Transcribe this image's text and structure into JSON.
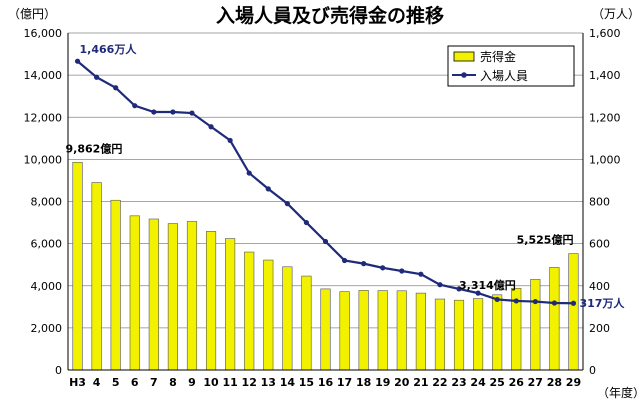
{
  "chart_data": {
    "type": "bar+line",
    "title": "入場人員及び売得金の推移",
    "left_unit": "（億円）",
    "right_unit": "（万人）",
    "x_unit": "（年度）",
    "categories": [
      "H3",
      "4",
      "5",
      "6",
      "7",
      "8",
      "9",
      "10",
      "11",
      "12",
      "13",
      "14",
      "15",
      "16",
      "17",
      "18",
      "19",
      "20",
      "21",
      "22",
      "23",
      "24",
      "25",
      "26",
      "27",
      "28",
      "29"
    ],
    "left_axis": {
      "min": 0,
      "max": 16000,
      "step": 2000,
      "ticks": [
        "0",
        "2,000",
        "4,000",
        "6,000",
        "8,000",
        "10,000",
        "12,000",
        "14,000",
        "16,000"
      ]
    },
    "right_axis": {
      "min": 0,
      "max": 1600,
      "step": 200,
      "ticks": [
        "0",
        "200",
        "400",
        "600",
        "800",
        "1,000",
        "1,200",
        "1,400",
        "1,600"
      ]
    },
    "series": [
      {
        "name": "売得金",
        "type": "bar",
        "axis": "left",
        "color": "#f2f200",
        "values": [
          9862,
          8900,
          8060,
          7320,
          7170,
          6950,
          7050,
          6580,
          6240,
          5600,
          5220,
          4900,
          4460,
          3850,
          3720,
          3780,
          3770,
          3760,
          3650,
          3370,
          3314,
          3390,
          3570,
          3880,
          4300,
          4870,
          5525
        ]
      },
      {
        "name": "入場人員",
        "type": "line",
        "axis": "right",
        "color": "#1f2a7a",
        "values": [
          1466,
          1390,
          1340,
          1255,
          1225,
          1225,
          1220,
          1155,
          1090,
          935,
          860,
          790,
          700,
          610,
          520,
          505,
          485,
          470,
          455,
          405,
          385,
          365,
          335,
          328,
          325,
          318,
          317
        ]
      }
    ],
    "annotations": [
      {
        "text": "1,466万人",
        "series": 1,
        "index": 0,
        "color": "#1f2a7a"
      },
      {
        "text": "9,862億円",
        "series": 0,
        "index": 0,
        "color": "#000000"
      },
      {
        "text": "3,314億円",
        "series": 0,
        "index": 20,
        "color": "#000000"
      },
      {
        "text": "5,525億円",
        "series": 0,
        "index": 26,
        "color": "#000000"
      },
      {
        "text": "317万人",
        "series": 1,
        "index": 26,
        "color": "#1f2a7a"
      }
    ],
    "grid": true,
    "legend_position": "top-right"
  }
}
